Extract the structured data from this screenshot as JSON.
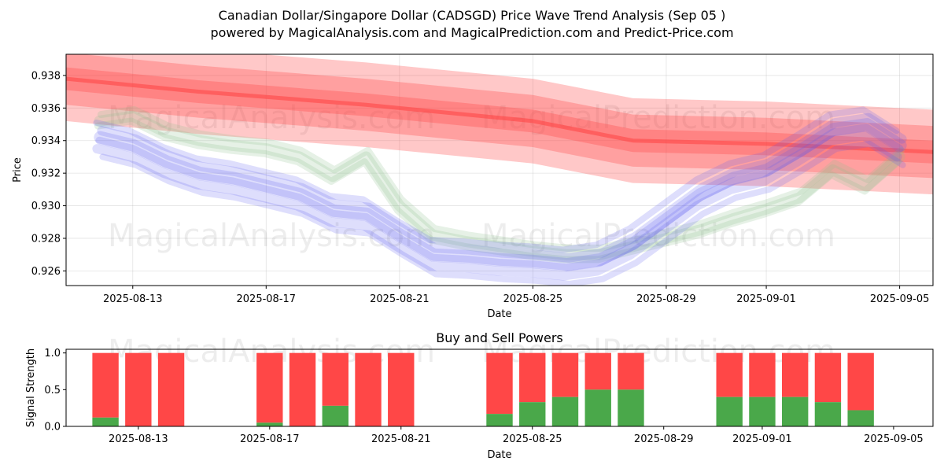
{
  "title_line1": "Canadian Dollar/Singapore Dollar (CADSGD) Price Wave Trend Analysis (Sep 05 )",
  "title_line2": "powered by MagicalAnalysis.com and MagicalPrediction.com and Predict-Price.com",
  "watermarks": [
    "MagicalAnalysis.com",
    "MagicalPrediction.com"
  ],
  "colors": {
    "buy": "#4aa84a",
    "sell": "#ff4747",
    "wave_blue": "#5b5bf0",
    "wave_green": "#8cc08c",
    "trend_red": "#ff3b3b"
  },
  "chart_data": [
    {
      "type": "line",
      "title": "",
      "xlabel": "Date",
      "ylabel": "Price",
      "x_range": [
        "2025-08-11",
        "2025-09-06"
      ],
      "ylim": [
        0.9251,
        0.9393
      ],
      "yticks": [
        "0.926",
        "0.928",
        "0.930",
        "0.932",
        "0.934",
        "0.936",
        "0.938"
      ],
      "xticks": [
        "2025-08-13",
        "2025-08-17",
        "2025-08-21",
        "2025-08-25",
        "2025-08-29",
        "2025-09-01",
        "2025-09-05"
      ],
      "grid": true,
      "series": [
        {
          "name": "price_wave_blue",
          "x": [
            "2025-08-12",
            "2025-08-13",
            "2025-08-14",
            "2025-08-15",
            "2025-08-16",
            "2025-08-17",
            "2025-08-18",
            "2025-08-19",
            "2025-08-20",
            "2025-08-21",
            "2025-08-22",
            "2025-08-23",
            "2025-08-24",
            "2025-08-25",
            "2025-08-26",
            "2025-08-27",
            "2025-08-28",
            "2025-08-29",
            "2025-08-30",
            "2025-08-31",
            "2025-09-01",
            "2025-09-02",
            "2025-09-03",
            "2025-09-04",
            "2025-09-05"
          ],
          "values": [
            0.934,
            0.9335,
            0.9325,
            0.9318,
            0.9315,
            0.931,
            0.9305,
            0.9295,
            0.9293,
            0.928,
            0.9268,
            0.9267,
            0.9265,
            0.9264,
            0.9262,
            0.9265,
            0.9275,
            0.929,
            0.9305,
            0.9315,
            0.932,
            0.9332,
            0.9345,
            0.9348,
            0.9335
          ]
        },
        {
          "name": "price_wave_green",
          "x": [
            "2025-08-12",
            "2025-08-13",
            "2025-08-14",
            "2025-08-15",
            "2025-08-16",
            "2025-08-17",
            "2025-08-18",
            "2025-08-19",
            "2025-08-20",
            "2025-08-21",
            "2025-08-22",
            "2025-08-23",
            "2025-08-24",
            "2025-08-25",
            "2025-08-26",
            "2025-08-27",
            "2025-08-28",
            "2025-08-29",
            "2025-08-30",
            "2025-08-31",
            "2025-09-01",
            "2025-09-02",
            "2025-09-03",
            "2025-09-04",
            "2025-09-05"
          ],
          "values": [
            0.9352,
            0.9355,
            0.9345,
            0.934,
            0.9337,
            0.9335,
            0.933,
            0.9318,
            0.933,
            0.93,
            0.9282,
            0.9278,
            0.9275,
            0.9272,
            0.927,
            0.927,
            0.9275,
            0.928,
            0.9285,
            0.9292,
            0.9298,
            0.9305,
            0.9322,
            0.9312,
            0.933
          ]
        },
        {
          "name": "trend_red",
          "x": [
            "2025-08-11",
            "2025-08-15",
            "2025-08-20",
            "2025-08-25",
            "2025-08-28",
            "2025-09-01",
            "2025-09-06"
          ],
          "values": [
            0.9378,
            0.937,
            0.9362,
            0.9352,
            0.934,
            0.9338,
            0.9333
          ]
        }
      ]
    },
    {
      "type": "bar",
      "title": "Buy and Sell Powers",
      "xlabel": "Date",
      "ylabel": "Signal Strength",
      "ylim": [
        0,
        1.05
      ],
      "yticks": [
        "0.0",
        "0.5",
        "1.0"
      ],
      "xticks": [
        "2025-08-13",
        "2025-08-17",
        "2025-08-21",
        "2025-08-25",
        "2025-08-29",
        "2025-09-01",
        "2025-09-05"
      ],
      "categories": [
        "2025-08-12",
        "2025-08-13",
        "2025-08-14",
        "2025-08-17",
        "2025-08-18",
        "2025-08-19",
        "2025-08-20",
        "2025-08-21",
        "2025-08-24",
        "2025-08-25",
        "2025-08-26",
        "2025-08-27",
        "2025-08-28",
        "2025-08-31",
        "2025-09-01",
        "2025-09-02",
        "2025-09-03",
        "2025-09-04"
      ],
      "series": [
        {
          "name": "Buy",
          "values": [
            0.12,
            0.0,
            0.0,
            0.05,
            0.0,
            0.28,
            0.0,
            0.0,
            0.17,
            0.33,
            0.4,
            0.5,
            0.5,
            0.4,
            0.4,
            0.4,
            0.33,
            0.22
          ]
        },
        {
          "name": "Sell",
          "values": [
            0.88,
            1.0,
            1.0,
            0.95,
            1.0,
            0.72,
            1.0,
            1.0,
            0.83,
            0.67,
            0.6,
            0.5,
            0.5,
            0.6,
            0.6,
            0.6,
            0.67,
            0.78
          ]
        }
      ]
    }
  ]
}
